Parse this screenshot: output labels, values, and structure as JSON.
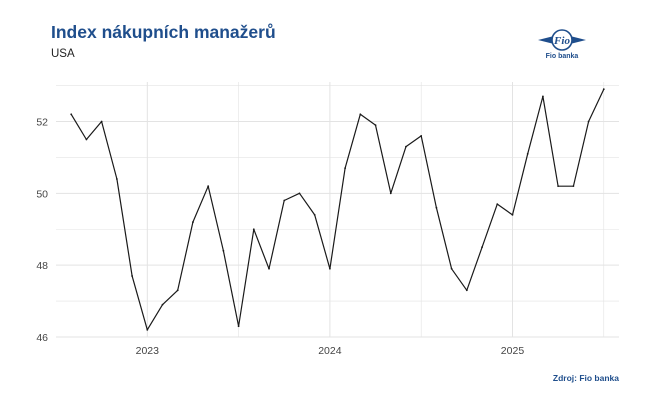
{
  "header": {
    "title": "Index nákupních manažerů",
    "subtitle": "USA"
  },
  "logo": {
    "text": "Fio banka",
    "mark": "Fio"
  },
  "footer": {
    "source": "Zdroj: Fio banka"
  },
  "colors": {
    "title": "#1f4e8c",
    "line": "#1a1a1a",
    "grid": "#e3e3e3"
  },
  "chart_data": {
    "type": "line",
    "title": "Index nákupních manažerů",
    "subtitle": "USA",
    "xlabel": "",
    "ylabel": "",
    "x": [
      "2022-08",
      "2022-09",
      "2022-10",
      "2022-11",
      "2022-12",
      "2023-01",
      "2023-02",
      "2023-03",
      "2023-04",
      "2023-05",
      "2023-06",
      "2023-07",
      "2023-08",
      "2023-09",
      "2023-10",
      "2023-11",
      "2023-12",
      "2024-01",
      "2024-02",
      "2024-03",
      "2024-04",
      "2024-05",
      "2024-06",
      "2024-07",
      "2024-08",
      "2024-09",
      "2024-10",
      "2024-11",
      "2024-12",
      "2025-01",
      "2025-02",
      "2025-03",
      "2025-04",
      "2025-05",
      "2025-06",
      "2025-07"
    ],
    "series": [
      {
        "values": [
          52.2,
          51.5,
          52.0,
          50.4,
          47.7,
          46.2,
          46.9,
          47.3,
          49.2,
          50.2,
          48.4,
          46.3,
          49.0,
          47.9,
          49.8,
          50.0,
          49.4,
          47.9,
          50.7,
          52.2,
          51.9,
          50.0,
          51.3,
          51.6,
          49.6,
          47.9,
          47.3,
          48.5,
          49.7,
          49.4,
          51.1,
          52.7,
          50.2,
          50.2,
          52.0,
          52.9
        ]
      }
    ],
    "xticks": [
      "2023",
      "2024",
      "2025"
    ],
    "yticks": [
      46,
      48,
      50,
      52
    ],
    "ylim": [
      46,
      53.1
    ],
    "xlim": [
      "2022-07",
      "2025-08"
    ],
    "grid": true,
    "legend": "none"
  }
}
